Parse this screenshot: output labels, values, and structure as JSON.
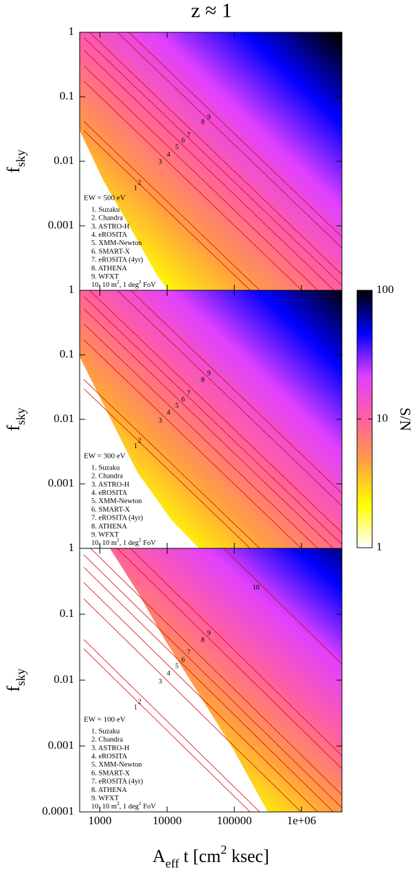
{
  "title": "z ≈ 1",
  "xlabel": [
    {
      "text": "A"
    },
    {
      "text": "eff",
      "shift": "sub"
    },
    {
      "text": " t [cm"
    },
    {
      "text": "2",
      "shift": "super"
    },
    {
      "text": " ksec]"
    }
  ],
  "colormap": [
    "#ffffff",
    "#ffff00",
    "#ffa040",
    "#ff60a0",
    "#e040ff",
    "#0000ff",
    "#000000"
  ],
  "curve_color": "#dd0000",
  "colorbar": {
    "label": "S/N",
    "lim": [
      1,
      100
    ],
    "ticks": [
      1,
      10,
      100
    ],
    "log": true
  },
  "chart_data": [
    {
      "type": "heatmap",
      "ylabel": [
        {
          "text": "f"
        },
        {
          "text": "sky",
          "shift": "sub"
        }
      ],
      "xlim": [
        500,
        4000000
      ],
      "ylim": [
        0.0001,
        1
      ],
      "log_x": true,
      "log_y": true,
      "yticks": [
        1,
        0.1,
        0.01,
        0.001
      ],
      "legend": {
        "title": "EW = 500 eV",
        "items": [
          "1. Suzaku",
          "2. Chandra",
          "3. ASTRO-H",
          "4. eROSITA",
          "5. XMM-Newton",
          "6. SMART-X",
          "7. eROSITA (4yr)",
          "8. ATHENA",
          "9. WFXT",
          [
            {
              "text": "10. 10 m"
            },
            {
              "text": "2",
              "shift": "super"
            },
            {
              "text": ", 1 deg"
            },
            {
              "text": "2",
              "shift": "super"
            },
            {
              "text": " FoV"
            }
          ]
        ]
      },
      "curves": [
        {
          "label": "1",
          "x": 3400,
          "y": 0.0038
        },
        {
          "label": "2",
          "x": 3900,
          "y": 0.0046
        },
        {
          "label": "3",
          "x": 7900,
          "y": 0.0096
        },
        {
          "label": "4",
          "x": 10500,
          "y": 0.0125
        },
        {
          "label": "5",
          "x": 14000,
          "y": 0.0163
        },
        {
          "label": "6",
          "x": 17300,
          "y": 0.0207
        },
        {
          "label": "7",
          "x": 21000,
          "y": 0.025
        },
        {
          "label": "8",
          "x": 34000,
          "y": 0.04
        },
        {
          "label": "9",
          "x": 42000,
          "y": 0.048
        }
      ]
    },
    {
      "type": "heatmap",
      "ylabel": [
        {
          "text": "f"
        },
        {
          "text": "sky",
          "shift": "sub"
        }
      ],
      "xlim": [
        500,
        4000000
      ],
      "ylim": [
        0.0001,
        1
      ],
      "log_x": true,
      "log_y": true,
      "yticks": [
        1,
        0.1,
        0.01,
        0.001
      ],
      "legend": {
        "title": "EW = 300 eV",
        "items": [
          "1. Suzaku",
          "2. Chandra",
          "3. ASTRO-H",
          "4. eROSITA",
          "5. XMM-Newton",
          "6. SMART-X",
          "7. eROSITA (4yr)",
          "8. ATHENA",
          "9. WFXT",
          [
            {
              "text": "10. 10 m"
            },
            {
              "text": "2",
              "shift": "super"
            },
            {
              "text": ", 1 deg"
            },
            {
              "text": "2",
              "shift": "super"
            },
            {
              "text": " FoV"
            }
          ]
        ]
      },
      "curves": [
        {
          "label": "1",
          "x": 3400,
          "y": 0.0038
        },
        {
          "label": "2",
          "x": 3900,
          "y": 0.0046
        },
        {
          "label": "3",
          "x": 7900,
          "y": 0.0094
        },
        {
          "label": "4",
          "x": 10500,
          "y": 0.0125
        },
        {
          "label": "5",
          "x": 14000,
          "y": 0.016
        },
        {
          "label": "6",
          "x": 17300,
          "y": 0.02
        },
        {
          "label": "7",
          "x": 21000,
          "y": 0.025
        },
        {
          "label": "8",
          "x": 34000,
          "y": 0.04
        },
        {
          "label": "9",
          "x": 42000,
          "y": 0.051
        }
      ]
    },
    {
      "type": "heatmap",
      "ylabel": [
        {
          "text": "f"
        },
        {
          "text": "sky",
          "shift": "sub"
        }
      ],
      "xlim": [
        500,
        4000000
      ],
      "ylim": [
        0.0001,
        1
      ],
      "log_x": true,
      "log_y": true,
      "xticks": [
        1000,
        10000,
        100000,
        {
          "value": 1000000,
          "label": "1e+06"
        }
      ],
      "yticks": [
        1,
        0.1,
        0.01,
        0.001,
        0.0001
      ],
      "legend": {
        "title": "EW = 100 eV",
        "items": [
          "1. Suzaku",
          "2. Chandra",
          "3. ASTRO-H",
          "4. eROSITA",
          "5. XMM-Newton",
          "6. SMART-X",
          "7. eROSITA (4yr)",
          "8. ATHENA",
          "9. WFXT",
          [
            {
              "text": "10. 10 m"
            },
            {
              "text": "2",
              "shift": "super"
            },
            {
              "text": ", 1 deg"
            },
            {
              "text": "2",
              "shift": "super"
            },
            {
              "text": " FoV"
            }
          ]
        ]
      },
      "curves": [
        {
          "label": "1",
          "x": 3400,
          "y": 0.0038
        },
        {
          "label": "2",
          "x": 3900,
          "y": 0.0046
        },
        {
          "label": "3",
          "x": 7900,
          "y": 0.0094
        },
        {
          "label": "4",
          "x": 10500,
          "y": 0.0125
        },
        {
          "label": "5",
          "x": 14000,
          "y": 0.016
        },
        {
          "label": "6",
          "x": 17300,
          "y": 0.02
        },
        {
          "label": "7",
          "x": 21000,
          "y": 0.026
        },
        {
          "label": "8",
          "x": 34000,
          "y": 0.04
        },
        {
          "label": "9",
          "x": 42000,
          "y": 0.051
        },
        {
          "label": "10",
          "x": 210000,
          "y": 0.25
        }
      ]
    }
  ]
}
